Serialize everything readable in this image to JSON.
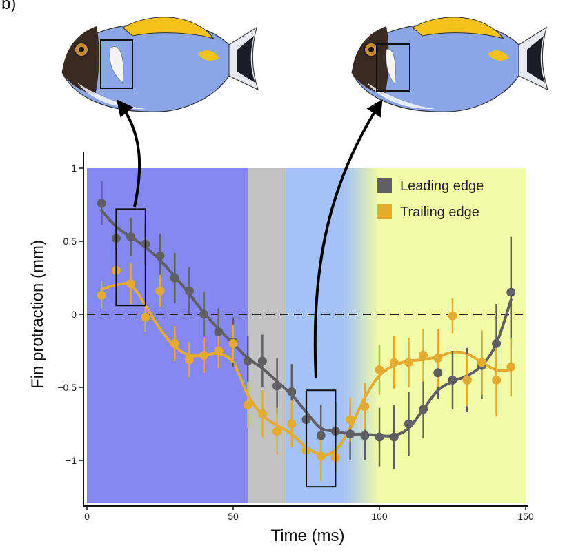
{
  "panel_label": "b)",
  "chart_data": {
    "type": "scatter",
    "xlabel": "Time (ms)",
    "ylabel": "Fin protraction (mm)",
    "xlim": [
      0,
      150
    ],
    "ylim": [
      -1.3,
      1.05
    ],
    "x_ticks": [
      0,
      50,
      100,
      150
    ],
    "y_ticks": [
      1,
      0.5,
      0,
      -0.5,
      -1
    ],
    "y_tick_labels": [
      "1",
      "0.5",
      "0",
      "−0.5",
      "−1"
    ],
    "reference_line": {
      "y": 0,
      "style": "dashed"
    },
    "legend_position": "top-right",
    "background_bands": [
      {
        "from": 0,
        "to": 55,
        "color": "#8488f0"
      },
      {
        "from": 55,
        "to": 68,
        "color": "#c2c2c2"
      },
      {
        "from": 68,
        "to": 88,
        "color": "#a4c2f6"
      },
      {
        "from": 88,
        "to": 100,
        "color": "#c5dcd6",
        "gradient": true
      },
      {
        "from": 100,
        "to": 150,
        "color": "#f2fca6"
      }
    ],
    "series": [
      {
        "name": "Leading edge",
        "color": "#606064",
        "x": [
          5,
          10,
          15,
          20,
          25,
          30,
          35,
          40,
          45,
          50,
          55,
          60,
          65,
          70,
          75,
          80,
          85,
          90,
          95,
          100,
          105,
          110,
          115,
          120,
          125,
          130,
          135,
          140,
          145
        ],
        "y": [
          0.76,
          0.52,
          0.53,
          0.48,
          0.4,
          0.25,
          0.16,
          0.0,
          -0.12,
          -0.19,
          -0.32,
          -0.32,
          -0.49,
          -0.53,
          -0.72,
          -0.83,
          -0.8,
          -0.82,
          -0.83,
          -0.84,
          -0.84,
          -0.75,
          -0.65,
          -0.4,
          -0.45,
          -0.45,
          -0.35,
          -0.2,
          0.15
        ],
        "err": [
          0.15,
          0.12,
          0.13,
          0.14,
          0.15,
          0.17,
          0.16,
          0.15,
          0.16,
          0.17,
          0.17,
          0.18,
          0.19,
          0.19,
          0.2,
          0.21,
          0.2,
          0.18,
          0.17,
          0.2,
          0.22,
          0.22,
          0.2,
          0.18,
          0.2,
          0.22,
          0.23,
          0.27,
          0.38
        ],
        "curve_y": [
          0.71,
          0.6,
          0.53,
          0.46,
          0.37,
          0.26,
          0.14,
          0.01,
          -0.1,
          -0.2,
          -0.3,
          -0.37,
          -0.46,
          -0.55,
          -0.67,
          -0.78,
          -0.8,
          -0.82,
          -0.82,
          -0.83,
          -0.83,
          -0.78,
          -0.65,
          -0.52,
          -0.46,
          -0.42,
          -0.35,
          -0.2,
          0.1
        ]
      },
      {
        "name": "Trailing edge",
        "color": "#e3ac30",
        "x": [
          5,
          10,
          15,
          20,
          25,
          30,
          35,
          40,
          45,
          50,
          55,
          60,
          65,
          70,
          75,
          80,
          85,
          90,
          95,
          100,
          105,
          110,
          115,
          120,
          125,
          130,
          135,
          140,
          145
        ],
        "y": [
          0.13,
          0.3,
          0.21,
          -0.02,
          0.16,
          -0.2,
          -0.31,
          -0.28,
          -0.25,
          -0.2,
          -0.62,
          -0.68,
          -0.8,
          -0.75,
          -0.93,
          -0.97,
          -0.98,
          -0.72,
          -0.63,
          -0.38,
          -0.33,
          -0.33,
          -0.28,
          -0.3,
          -0.01,
          -0.45,
          -0.33,
          -0.45,
          -0.36
        ],
        "err": [
          0.1,
          0.14,
          0.14,
          0.1,
          0.11,
          0.12,
          0.12,
          0.12,
          0.12,
          0.13,
          0.16,
          0.16,
          0.16,
          0.16,
          0.17,
          0.17,
          0.1,
          0.15,
          0.16,
          0.17,
          0.18,
          0.17,
          0.18,
          0.2,
          0.12,
          0.18,
          0.22,
          0.25,
          0.2
        ],
        "curve_y": [
          0.17,
          0.2,
          0.2,
          0.06,
          -0.1,
          -0.22,
          -0.28,
          -0.28,
          -0.27,
          -0.33,
          -0.55,
          -0.69,
          -0.76,
          -0.82,
          -0.91,
          -0.96,
          -0.93,
          -0.78,
          -0.57,
          -0.42,
          -0.35,
          -0.32,
          -0.31,
          -0.29,
          -0.26,
          -0.27,
          -0.33,
          -0.38,
          -0.38
        ]
      }
    ],
    "highlight_boxes": [
      {
        "x0": 10,
        "x1": 20,
        "y0": 0.06,
        "y1": 0.72
      },
      {
        "x0": 75,
        "x1": 85,
        "y0": -1.18,
        "y1": -0.52
      }
    ]
  }
}
